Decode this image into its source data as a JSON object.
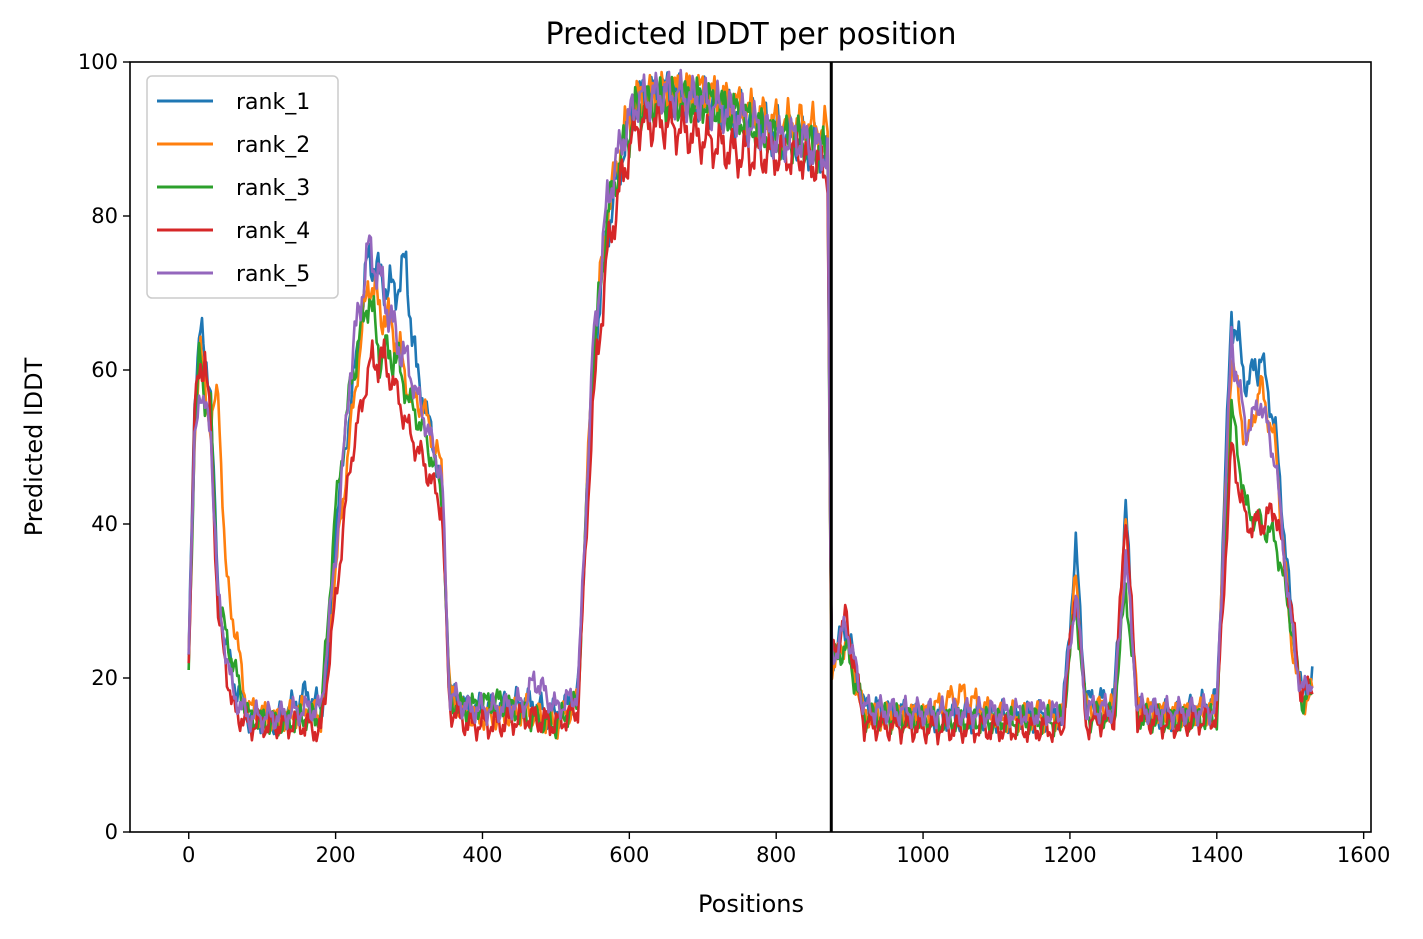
{
  "chart_data": {
    "type": "line",
    "title": "Predicted lDDT per position",
    "xlabel": "Positions",
    "ylabel": "Predicted lDDT",
    "xlim": [
      -80,
      1610
    ],
    "ylim": [
      0,
      100
    ],
    "xticks": [
      0,
      200,
      400,
      600,
      800,
      1000,
      1200,
      1400,
      1600
    ],
    "yticks": [
      0,
      20,
      40,
      60,
      80,
      100
    ],
    "grid": false,
    "legend_position": "top-left",
    "vline": 875,
    "series": [
      {
        "name": "rank_1",
        "color": "#1f77b4",
        "offset": 0.9,
        "phase": 0,
        "points": [
          [
            0,
            23
          ],
          [
            8,
            55
          ],
          [
            15,
            68
          ],
          [
            22,
            60
          ],
          [
            30,
            58
          ],
          [
            40,
            30
          ],
          [
            60,
            20
          ],
          [
            80,
            15
          ],
          [
            120,
            14.5
          ],
          [
            160,
            18
          ],
          [
            180,
            16
          ],
          [
            190,
            22
          ],
          [
            200,
            40
          ],
          [
            220,
            55
          ],
          [
            245,
            75
          ],
          [
            260,
            72
          ],
          [
            280,
            70
          ],
          [
            295,
            74
          ],
          [
            310,
            60
          ],
          [
            330,
            52
          ],
          [
            345,
            44
          ],
          [
            355,
            18
          ],
          [
            380,
            16
          ],
          [
            420,
            16
          ],
          [
            460,
            17
          ],
          [
            500,
            15
          ],
          [
            530,
            18
          ],
          [
            550,
            60
          ],
          [
            570,
            78
          ],
          [
            590,
            88
          ],
          [
            610,
            95
          ],
          [
            650,
            96
          ],
          [
            700,
            95
          ],
          [
            750,
            93
          ],
          [
            800,
            91
          ],
          [
            830,
            90
          ],
          [
            870,
            88
          ],
          [
            875,
            22
          ],
          [
            895,
            27
          ],
          [
            920,
            16
          ],
          [
            1000,
            15
          ],
          [
            1100,
            15
          ],
          [
            1190,
            15
          ],
          [
            1208,
            37
          ],
          [
            1222,
            17
          ],
          [
            1260,
            17
          ],
          [
            1276,
            42
          ],
          [
            1292,
            16
          ],
          [
            1340,
            15
          ],
          [
            1400,
            17
          ],
          [
            1420,
            68
          ],
          [
            1440,
            58
          ],
          [
            1460,
            62
          ],
          [
            1480,
            52
          ],
          [
            1500,
            30
          ],
          [
            1515,
            18
          ],
          [
            1530,
            20
          ]
        ]
      },
      {
        "name": "rank_2",
        "color": "#ff7f0e",
        "offset": 0.8,
        "phase": 1.3,
        "points": [
          [
            0,
            22
          ],
          [
            8,
            52
          ],
          [
            15,
            62
          ],
          [
            22,
            58
          ],
          [
            30,
            52
          ],
          [
            40,
            58
          ],
          [
            50,
            34
          ],
          [
            60,
            28
          ],
          [
            80,
            16
          ],
          [
            120,
            14.5
          ],
          [
            160,
            16
          ],
          [
            180,
            15
          ],
          [
            200,
            34
          ],
          [
            220,
            52
          ],
          [
            245,
            72
          ],
          [
            260,
            68
          ],
          [
            280,
            65
          ],
          [
            300,
            57
          ],
          [
            320,
            55
          ],
          [
            345,
            47
          ],
          [
            355,
            18
          ],
          [
            380,
            15
          ],
          [
            420,
            15
          ],
          [
            460,
            16
          ],
          [
            500,
            14
          ],
          [
            530,
            17
          ],
          [
            550,
            62
          ],
          [
            570,
            80
          ],
          [
            590,
            90
          ],
          [
            610,
            95
          ],
          [
            650,
            96
          ],
          [
            700,
            96
          ],
          [
            750,
            94
          ],
          [
            800,
            92
          ],
          [
            830,
            92
          ],
          [
            870,
            91
          ],
          [
            875,
            21
          ],
          [
            895,
            25
          ],
          [
            920,
            15
          ],
          [
            1000,
            15
          ],
          [
            1050,
            18
          ],
          [
            1100,
            15
          ],
          [
            1190,
            15
          ],
          [
            1208,
            33
          ],
          [
            1222,
            16
          ],
          [
            1260,
            16
          ],
          [
            1276,
            40
          ],
          [
            1292,
            16
          ],
          [
            1340,
            15
          ],
          [
            1400,
            16
          ],
          [
            1420,
            62
          ],
          [
            1440,
            50
          ],
          [
            1460,
            58
          ],
          [
            1480,
            50
          ],
          [
            1500,
            26
          ],
          [
            1515,
            17
          ],
          [
            1530,
            18
          ]
        ]
      },
      {
        "name": "rank_3",
        "color": "#2ca02c",
        "offset": 0.8,
        "phase": 2.6,
        "points": [
          [
            0,
            21
          ],
          [
            8,
            52
          ],
          [
            15,
            62
          ],
          [
            22,
            56
          ],
          [
            30,
            55
          ],
          [
            40,
            30
          ],
          [
            60,
            22
          ],
          [
            80,
            15
          ],
          [
            120,
            14
          ],
          [
            160,
            15
          ],
          [
            180,
            15
          ],
          [
            200,
            42
          ],
          [
            220,
            58
          ],
          [
            245,
            70
          ],
          [
            260,
            62
          ],
          [
            280,
            62
          ],
          [
            300,
            56
          ],
          [
            320,
            52
          ],
          [
            345,
            44
          ],
          [
            355,
            17
          ],
          [
            380,
            16
          ],
          [
            420,
            17
          ],
          [
            460,
            15
          ],
          [
            500,
            14
          ],
          [
            530,
            17
          ],
          [
            550,
            60
          ],
          [
            570,
            80
          ],
          [
            590,
            88
          ],
          [
            610,
            94
          ],
          [
            650,
            95
          ],
          [
            700,
            95
          ],
          [
            750,
            93
          ],
          [
            800,
            90
          ],
          [
            830,
            90
          ],
          [
            870,
            88
          ],
          [
            875,
            22
          ],
          [
            895,
            24
          ],
          [
            920,
            15
          ],
          [
            1000,
            14.5
          ],
          [
            1100,
            14.5
          ],
          [
            1190,
            14.5
          ],
          [
            1208,
            30
          ],
          [
            1222,
            15
          ],
          [
            1260,
            15
          ],
          [
            1276,
            32
          ],
          [
            1292,
            15
          ],
          [
            1340,
            14.5
          ],
          [
            1400,
            15
          ],
          [
            1420,
            55
          ],
          [
            1440,
            42
          ],
          [
            1460,
            40
          ],
          [
            1480,
            38
          ],
          [
            1500,
            28
          ],
          [
            1515,
            17
          ],
          [
            1530,
            18
          ]
        ]
      },
      {
        "name": "rank_4",
        "color": "#d62728",
        "offset": 0.9,
        "phase": 3.9,
        "points": [
          [
            0,
            22
          ],
          [
            8,
            55
          ],
          [
            15,
            60
          ],
          [
            22,
            62
          ],
          [
            30,
            52
          ],
          [
            40,
            28
          ],
          [
            60,
            16
          ],
          [
            80,
            14
          ],
          [
            120,
            14
          ],
          [
            160,
            14
          ],
          [
            180,
            13
          ],
          [
            200,
            30
          ],
          [
            220,
            48
          ],
          [
            245,
            60
          ],
          [
            260,
            62
          ],
          [
            280,
            58
          ],
          [
            300,
            52
          ],
          [
            320,
            48
          ],
          [
            345,
            42
          ],
          [
            355,
            16
          ],
          [
            380,
            14
          ],
          [
            420,
            14
          ],
          [
            460,
            15
          ],
          [
            500,
            14
          ],
          [
            530,
            16
          ],
          [
            550,
            55
          ],
          [
            570,
            75
          ],
          [
            590,
            85
          ],
          [
            610,
            92
          ],
          [
            650,
            92
          ],
          [
            700,
            90
          ],
          [
            750,
            88
          ],
          [
            800,
            88
          ],
          [
            830,
            88
          ],
          [
            870,
            86
          ],
          [
            875,
            22
          ],
          [
            895,
            28
          ],
          [
            920,
            14
          ],
          [
            1000,
            13.5
          ],
          [
            1100,
            13.5
          ],
          [
            1190,
            13.5
          ],
          [
            1208,
            32
          ],
          [
            1222,
            14
          ],
          [
            1260,
            15
          ],
          [
            1276,
            42
          ],
          [
            1292,
            15
          ],
          [
            1340,
            14
          ],
          [
            1400,
            15
          ],
          [
            1420,
            50
          ],
          [
            1440,
            40
          ],
          [
            1460,
            40
          ],
          [
            1480,
            42
          ],
          [
            1500,
            30
          ],
          [
            1515,
            18
          ],
          [
            1530,
            19
          ]
        ]
      },
      {
        "name": "rank_5",
        "color": "#9467bd",
        "offset": 0.8,
        "phase": 5.2,
        "points": [
          [
            0,
            25
          ],
          [
            8,
            50
          ],
          [
            15,
            58
          ],
          [
            22,
            55
          ],
          [
            30,
            52
          ],
          [
            40,
            30
          ],
          [
            60,
            18
          ],
          [
            80,
            15
          ],
          [
            120,
            15
          ],
          [
            160,
            16
          ],
          [
            180,
            16
          ],
          [
            200,
            36
          ],
          [
            220,
            60
          ],
          [
            245,
            76
          ],
          [
            260,
            72
          ],
          [
            280,
            65
          ],
          [
            300,
            60
          ],
          [
            320,
            54
          ],
          [
            345,
            46
          ],
          [
            355,
            18
          ],
          [
            380,
            16
          ],
          [
            420,
            16
          ],
          [
            460,
            17
          ],
          [
            470,
            20
          ],
          [
            500,
            16
          ],
          [
            530,
            18
          ],
          [
            550,
            62
          ],
          [
            570,
            82
          ],
          [
            590,
            90
          ],
          [
            610,
            95
          ],
          [
            650,
            96
          ],
          [
            700,
            95
          ],
          [
            750,
            93
          ],
          [
            800,
            90
          ],
          [
            830,
            90
          ],
          [
            870,
            88
          ],
          [
            875,
            22
          ],
          [
            895,
            27
          ],
          [
            920,
            16
          ],
          [
            1000,
            15.5
          ],
          [
            1100,
            15.5
          ],
          [
            1190,
            15.5
          ],
          [
            1208,
            31
          ],
          [
            1222,
            16
          ],
          [
            1260,
            16
          ],
          [
            1276,
            36
          ],
          [
            1292,
            16
          ],
          [
            1340,
            15.5
          ],
          [
            1400,
            16
          ],
          [
            1420,
            64
          ],
          [
            1440,
            52
          ],
          [
            1460,
            56
          ],
          [
            1480,
            48
          ],
          [
            1500,
            28
          ],
          [
            1515,
            18
          ],
          [
            1530,
            20
          ]
        ]
      }
    ]
  }
}
